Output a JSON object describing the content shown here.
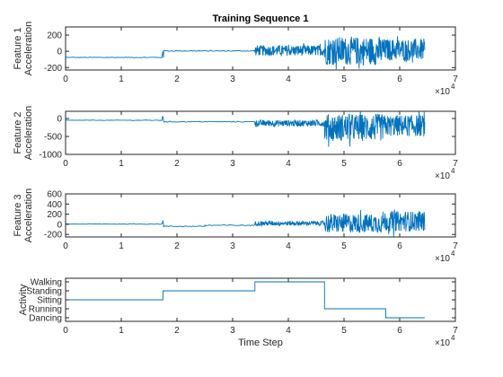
{
  "chart_data": [
    {
      "type": "line",
      "title": "Training Sequence 1",
      "ylabel_lines": [
        "Feature 1",
        "Acceleration"
      ],
      "xlabel": "",
      "xlim": [
        0,
        70000
      ],
      "ylim": [
        -230,
        300
      ],
      "xticks": [
        0,
        10000,
        20000,
        30000,
        40000,
        50000,
        60000,
        70000
      ],
      "xtick_labels": [
        "0",
        "1",
        "2",
        "3",
        "4",
        "5",
        "6",
        "7"
      ],
      "yticks": [
        -200,
        0,
        200
      ],
      "ytick_labels": [
        "-200",
        "0",
        "200"
      ],
      "x_exponent": {
        "base": "×10",
        "power": "4"
      },
      "series": [
        {
          "color": "#0072bd",
          "segments": [
            {
              "x_start": 0,
              "x_end": 17300,
              "mean": -75,
              "amp": 4
            },
            {
              "x_start": 17300,
              "x_end": 17600,
              "mean": -75,
              "amp": 70,
              "spike": true
            },
            {
              "x_start": 17600,
              "x_end": 34000,
              "mean": 5,
              "amp": 6
            },
            {
              "x_start": 34000,
              "x_end": 46500,
              "mean": 10,
              "amp": 65
            },
            {
              "x_start": 46500,
              "x_end": 57000,
              "mean": 5,
              "amp": 175
            },
            {
              "x_start": 57000,
              "x_end": 64500,
              "mean": 20,
              "amp": 135
            }
          ]
        }
      ]
    },
    {
      "type": "line",
      "title": "",
      "ylabel_lines": [
        "Feature 2",
        "Acceleration"
      ],
      "xlabel": "",
      "xlim": [
        0,
        70000
      ],
      "ylim": [
        -1000,
        200
      ],
      "xticks": [
        0,
        10000,
        20000,
        30000,
        40000,
        50000,
        60000,
        70000
      ],
      "xtick_labels": [
        "0",
        "1",
        "2",
        "3",
        "4",
        "5",
        "6",
        "7"
      ],
      "yticks": [
        -1000,
        -500,
        0
      ],
      "ytick_labels": [
        "-1000",
        "-500",
        "0"
      ],
      "x_exponent": {
        "base": "×10",
        "power": "4"
      },
      "series": [
        {
          "color": "#0072bd",
          "segments": [
            {
              "x_start": 0,
              "x_end": 17300,
              "mean": -50,
              "amp": 6
            },
            {
              "x_start": 17300,
              "x_end": 17600,
              "mean": -50,
              "amp": 120,
              "spike": true
            },
            {
              "x_start": 17600,
              "x_end": 34000,
              "mean": -90,
              "amp": 12
            },
            {
              "x_start": 34000,
              "x_end": 46500,
              "mean": -130,
              "amp": 90
            },
            {
              "x_start": 46500,
              "x_end": 57000,
              "mean": -250,
              "amp": 380
            },
            {
              "x_start": 57000,
              "x_end": 64500,
              "mean": -200,
              "amp": 300
            }
          ]
        }
      ]
    },
    {
      "type": "line",
      "title": "",
      "ylabel_lines": [
        "Feature 3",
        "Acceleration"
      ],
      "xlabel": "",
      "xlim": [
        0,
        70000
      ],
      "ylim": [
        -250,
        600
      ],
      "xticks": [
        0,
        10000,
        20000,
        30000,
        40000,
        50000,
        60000,
        70000
      ],
      "xtick_labels": [
        "0",
        "1",
        "2",
        "3",
        "4",
        "5",
        "6",
        "7"
      ],
      "yticks": [
        -200,
        0,
        200,
        400,
        600
      ],
      "ytick_labels": [
        "-200",
        "0",
        "200",
        "400",
        "600"
      ],
      "x_exponent": {
        "base": "×10",
        "power": "4"
      },
      "series": [
        {
          "color": "#0072bd",
          "segments": [
            {
              "x_start": 0,
              "x_end": 17300,
              "mean": 5,
              "amp": 6
            },
            {
              "x_start": 17300,
              "x_end": 17600,
              "mean": 5,
              "amp": 60,
              "spike": true
            },
            {
              "x_start": 17600,
              "x_end": 25000,
              "mean": -40,
              "amp": 8
            },
            {
              "x_start": 25000,
              "x_end": 34000,
              "mean": -20,
              "amp": 10
            },
            {
              "x_start": 34000,
              "x_end": 46500,
              "mean": 20,
              "amp": 45
            },
            {
              "x_start": 46500,
              "x_end": 57000,
              "mean": 20,
              "amp": 190
            },
            {
              "x_start": 57000,
              "x_end": 64500,
              "mean": 60,
              "amp": 200
            }
          ]
        }
      ]
    },
    {
      "type": "line",
      "title": "",
      "ylabel_lines": [
        "Activity"
      ],
      "xlabel": "Time Step",
      "xlim": [
        0,
        70000
      ],
      "ylim": [
        0.6,
        5.4
      ],
      "xticks": [
        0,
        10000,
        20000,
        30000,
        40000,
        50000,
        60000,
        70000
      ],
      "xtick_labels": [
        "0",
        "1",
        "2",
        "3",
        "4",
        "5",
        "6",
        "7"
      ],
      "yticks": [
        1,
        2,
        3,
        4,
        5
      ],
      "ytick_labels": [
        "Dancing",
        "Running",
        "Sitting",
        "Standing",
        "Walking"
      ],
      "x_exponent": {
        "base": "×10",
        "power": "4"
      },
      "series": [
        {
          "color": "#0072bd",
          "steps": [
            {
              "x_start": 0,
              "x_end": 17500,
              "y": 3
            },
            {
              "x_start": 17500,
              "x_end": 34000,
              "y": 4
            },
            {
              "x_start": 34000,
              "x_end": 46500,
              "y": 5
            },
            {
              "x_start": 46500,
              "x_end": 57500,
              "y": 2
            },
            {
              "x_start": 57500,
              "x_end": 64500,
              "y": 1
            }
          ]
        }
      ]
    }
  ]
}
